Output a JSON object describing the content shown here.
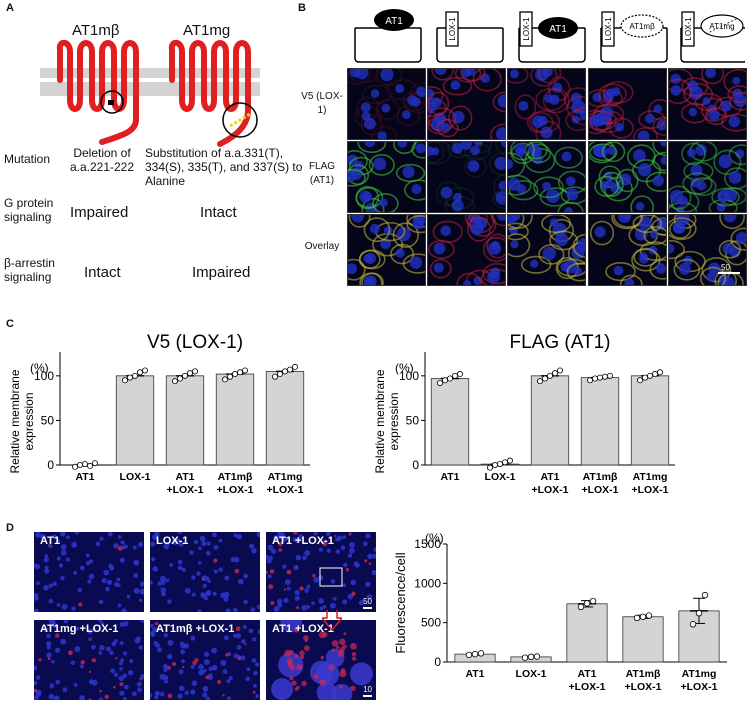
{
  "panels": {
    "a": "A",
    "b": "B",
    "c": "C",
    "d": "D"
  },
  "panel_a": {
    "constructs": [
      "AT1mβ",
      "AT1mg"
    ],
    "rows": [
      {
        "label": "Mutation",
        "values": [
          "Deletion of a.a.221-222",
          "Substitution of a.a.331(T), 334(S), 335(T), and 337(S) to Alanine"
        ]
      },
      {
        "label": "G protein signaling",
        "values": [
          "Impaired",
          "Intact"
        ]
      },
      {
        "label": "β-arrestin signaling",
        "values": [
          "Intact",
          "Impaired"
        ]
      }
    ]
  },
  "panel_b": {
    "schematic_labels": {
      "at1": "AT1",
      "lox1": "LOX-1",
      "at1mb": "AT1mβ",
      "at1mg": "AT1mg"
    },
    "row_labels": [
      "V5 (LOX-1)",
      "FLAG (AT1)",
      "Overlay"
    ],
    "scale_bar": "50",
    "channel_colors": {
      "v5": "#c02040",
      "flag": "#40c040",
      "nuclei": "#2030c0"
    }
  },
  "panel_c": {
    "y_unit": "(%)",
    "ylabel": "Relative membrane expression",
    "charts": [
      {
        "type": "bar",
        "title": "V5 (LOX-1)",
        "categories": [
          "AT1",
          "LOX-1",
          "AT1 +LOX-1",
          "AT1mβ +LOX-1",
          "AT1mg +LOX-1"
        ],
        "values": [
          0,
          100,
          100,
          102,
          105
        ],
        "points": [
          [
            -2,
            0,
            1,
            -1,
            2
          ],
          [
            95,
            98,
            100,
            104,
            106
          ],
          [
            94,
            97,
            100,
            103,
            105
          ],
          [
            96,
            99,
            102,
            104,
            106
          ],
          [
            99,
            102,
            105,
            107,
            110
          ]
        ],
        "yticks": [
          0,
          50,
          100
        ],
        "ylim": [
          0,
          120
        ]
      },
      {
        "type": "bar",
        "title": "FLAG (AT1)",
        "categories": [
          "AT1",
          "LOX-1",
          "AT1 +LOX-1",
          "AT1mβ +LOX-1",
          "AT1mg +LOX-1"
        ],
        "values": [
          97,
          1,
          100,
          98,
          100
        ],
        "points": [
          [
            92,
            95,
            97,
            100,
            102
          ],
          [
            -3,
            0,
            1,
            3,
            5
          ],
          [
            94,
            97,
            100,
            103,
            106
          ],
          [
            95,
            97,
            98,
            99,
            100
          ],
          [
            95,
            98,
            100,
            102,
            104
          ]
        ],
        "yticks": [
          0,
          50,
          100
        ],
        "ylim": [
          0,
          120
        ]
      }
    ]
  },
  "panel_d": {
    "image_labels": [
      "AT1",
      "LOX-1",
      "AT1 +LOX-1",
      "AT1mg +LOX-1",
      "AT1mβ +LOX-1",
      "AT1 +LOX-1"
    ],
    "scale_bars": [
      "50",
      "10"
    ],
    "chart": {
      "type": "bar",
      "ylabel": "Fluorescence/cell",
      "y_unit": "(%)",
      "categories": [
        "AT1",
        "LOX-1",
        "AT1 +LOX-1",
        "AT1mβ +LOX-1",
        "AT1mg +LOX-1"
      ],
      "values": [
        100,
        65,
        740,
        575,
        650
      ],
      "errors": [
        12,
        10,
        40,
        20,
        160
      ],
      "points": [
        [
          90,
          100,
          110
        ],
        [
          55,
          65,
          70
        ],
        [
          700,
          745,
          775
        ],
        [
          560,
          575,
          590
        ],
        [
          480,
          620,
          850
        ]
      ],
      "yticks": [
        0,
        500,
        1000,
        1500
      ],
      "ylim": [
        0,
        1500
      ]
    }
  }
}
